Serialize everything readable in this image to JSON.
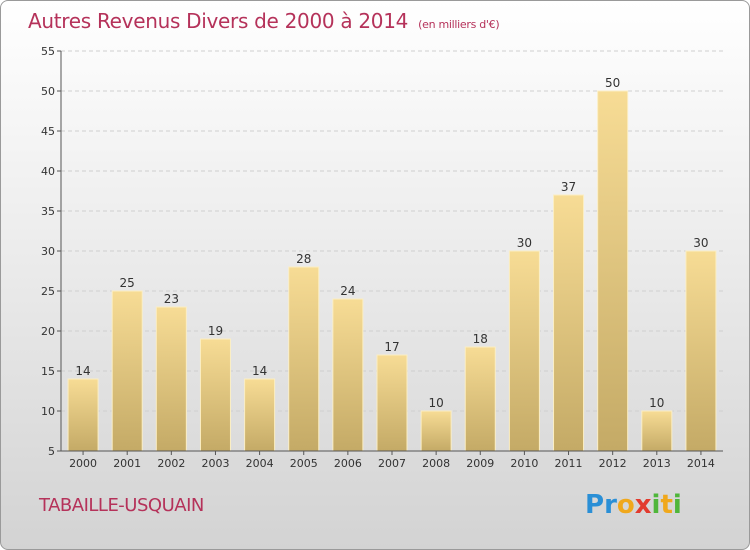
{
  "title": "Autres Revenus Divers de 2000 à 2014",
  "subtitle": "(en milliers d'€)",
  "commune": "TABAILLE-USQUAIN",
  "logo": "Proxiti",
  "colors": {
    "title": "#b5325a",
    "bar_top": "#f7dc95",
    "bar_bottom": "#c4aa66",
    "axis": "#555555"
  },
  "chart_data": {
    "type": "bar",
    "title": "Autres Revenus Divers de 2000 à 2014",
    "subtitle": "(en milliers d'€)",
    "categories": [
      "2000",
      "2001",
      "2002",
      "2003",
      "2004",
      "2005",
      "2006",
      "2007",
      "2008",
      "2009",
      "2010",
      "2011",
      "2012",
      "2013",
      "2014"
    ],
    "values": [
      14,
      25,
      23,
      19,
      14,
      28,
      24,
      17,
      10,
      18,
      30,
      37,
      50,
      10,
      30
    ],
    "ylim": [
      5,
      55
    ],
    "yticks": [
      5,
      10,
      15,
      20,
      25,
      30,
      35,
      40,
      45,
      50,
      55
    ],
    "grid": true,
    "xlabel": "",
    "ylabel": ""
  }
}
